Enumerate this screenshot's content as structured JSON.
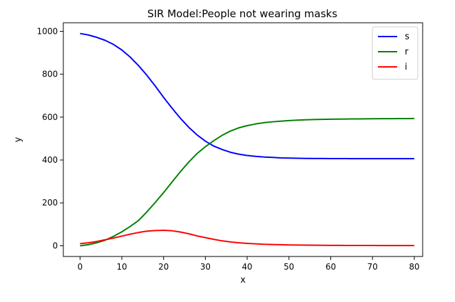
{
  "chart_data": {
    "type": "line",
    "title": "SIR Model:People not wearing masks",
    "xlabel": "x",
    "ylabel": "y",
    "xlim": [
      -4,
      82
    ],
    "ylim": [
      -50,
      1040
    ],
    "xticks": [
      0,
      10,
      20,
      30,
      40,
      50,
      60,
      70,
      80
    ],
    "yticks": [
      0,
      200,
      400,
      600,
      800,
      1000
    ],
    "xtick_labels": [
      "0",
      "10",
      "20",
      "30",
      "40",
      "50",
      "60",
      "70",
      "80"
    ],
    "ytick_labels": [
      "0",
      "200",
      "400",
      "600",
      "800",
      "1000"
    ],
    "grid": false,
    "legend_position": "top-right",
    "x": [
      0,
      2,
      4,
      6,
      8,
      10,
      12,
      14,
      16,
      18,
      20,
      22,
      24,
      26,
      28,
      30,
      32,
      34,
      36,
      38,
      40,
      42,
      44,
      46,
      48,
      50,
      52,
      54,
      56,
      58,
      60,
      62,
      64,
      66,
      68,
      70,
      72,
      74,
      76,
      78,
      80
    ],
    "series": [
      {
        "name": "s",
        "color": "#0000ff",
        "values": [
          990,
          983,
          972,
          958,
          939,
          913,
          880,
          840,
          795,
          745,
          692,
          642,
          595,
          553,
          517,
          488,
          465,
          449,
          436,
          427,
          421,
          417,
          414,
          412,
          410,
          409,
          408,
          407.5,
          407,
          406.8,
          406.6,
          406.5,
          406.4,
          406.3,
          406.3,
          406.2,
          406.2,
          406.2,
          406.1,
          406.1,
          406.1
        ]
      },
      {
        "name": "r",
        "color": "#008000",
        "values": [
          0,
          5,
          14,
          26,
          44,
          65,
          90,
          118,
          158,
          202,
          248,
          297,
          345,
          390,
          430,
          462,
          490,
          515,
          535,
          550,
          560,
          568,
          574,
          578,
          581,
          584,
          586,
          587.5,
          588.5,
          589.5,
          590.2,
          590.8,
          591.2,
          591.6,
          592,
          592.3,
          592.6,
          592.8,
          593,
          593.2,
          593.4
        ]
      },
      {
        "name": "i",
        "color": "#ff0000",
        "values": [
          10,
          14,
          20,
          28,
          36,
          45,
          54,
          62,
          68,
          71,
          72,
          70,
          64,
          56,
          46,
          38,
          30,
          23,
          18,
          14,
          11,
          9,
          7,
          6,
          5,
          4,
          3.5,
          3,
          2.5,
          2.2,
          2,
          1.8,
          1.6,
          1.5,
          1.4,
          1.3,
          1.2,
          1.1,
          1.1,
          1,
          1
        ]
      }
    ]
  }
}
